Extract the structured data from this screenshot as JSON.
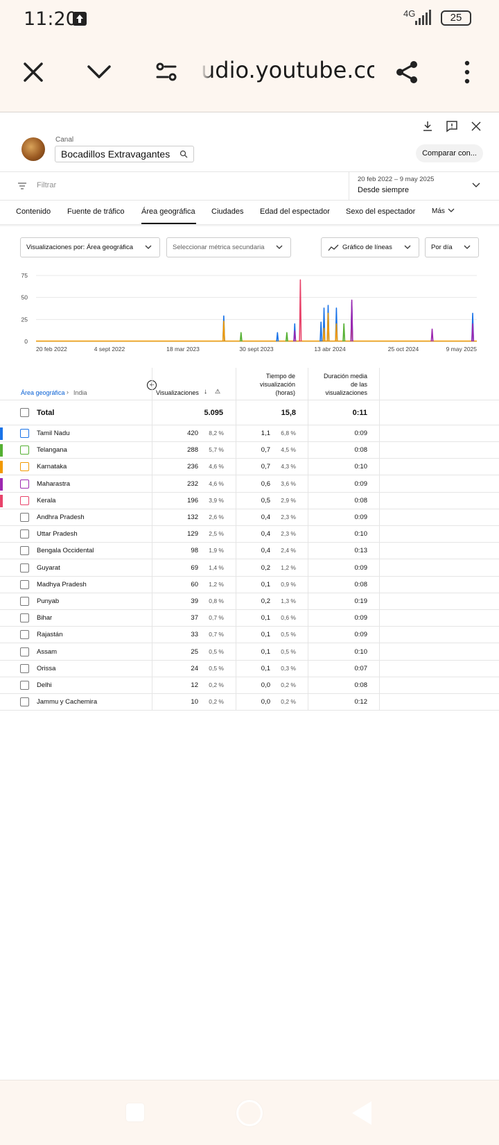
{
  "status_bar": {
    "time": "11:20",
    "network": "4G",
    "battery": "25"
  },
  "browser": {
    "url": "udio.youtube.com"
  },
  "header": {
    "channel_label": "Canal",
    "channel_name": "Bocadillos Extravagantes",
    "compare_label": "Comparar con..."
  },
  "filter": {
    "placeholder": "Filtrar"
  },
  "date": {
    "range": "20 feb 2022 – 9 may 2025",
    "label": "Desde siempre"
  },
  "tabs": [
    {
      "label": "Contenido"
    },
    {
      "label": "Fuente de tráfico"
    },
    {
      "label": "Área geográfica"
    },
    {
      "label": "Ciudades"
    },
    {
      "label": "Edad del espectador"
    },
    {
      "label": "Sexo del espectador"
    },
    {
      "label": "Más"
    }
  ],
  "controls": {
    "metric": "Visualizaciones por: Área geográfica",
    "secondary": "Seleccionar métrica secundaria",
    "chart_type": "Gráfico de líneas",
    "granularity": "Por día"
  },
  "chart_data": {
    "type": "line",
    "x_tick_labels": [
      "20 feb 2022",
      "4 sept 2022",
      "18 mar 2023",
      "30 sept 2023",
      "13 abr 2024",
      "25 oct 2024",
      "9 may 2025"
    ],
    "y_tick_labels": [
      "75",
      "50",
      "25",
      "0"
    ],
    "ylim": [
      0,
      75
    ],
    "grid": true,
    "series": [
      {
        "name": "Tamil Nadu",
        "color": "#1a73e8",
        "spikes": [
          [
            "2023-07-05",
            29
          ],
          [
            "2023-11-25",
            10
          ],
          [
            "2024-01-10",
            20
          ],
          [
            "2024-03-20",
            22
          ],
          [
            "2024-03-28",
            38
          ],
          [
            "2024-04-08",
            41
          ],
          [
            "2024-04-30",
            38
          ],
          [
            "2024-06-10",
            45
          ],
          [
            "2025-04-28",
            32
          ]
        ]
      },
      {
        "name": "Telangana",
        "color": "#55b033",
        "spikes": [
          [
            "2023-08-20",
            10
          ],
          [
            "2023-12-20",
            10
          ],
          [
            "2024-05-20",
            20
          ]
        ]
      },
      {
        "name": "Karnataka",
        "color": "#f29900",
        "spikes": [
          [
            "2023-07-05",
            23
          ],
          [
            "2024-03-28",
            15
          ],
          [
            "2024-04-08",
            32
          ],
          [
            "2024-04-30",
            20
          ],
          [
            "2024-06-10",
            30
          ]
        ]
      },
      {
        "name": "Maharastra",
        "color": "#9c27b0",
        "spikes": [
          [
            "2024-01-10",
            12
          ],
          [
            "2024-06-10",
            47
          ],
          [
            "2025-01-10",
            14
          ],
          [
            "2025-04-28",
            20
          ]
        ]
      },
      {
        "name": "Kerala",
        "color": "#e8436a",
        "spikes": [
          [
            "2024-01-25",
            70
          ]
        ]
      }
    ]
  },
  "table": {
    "breadcrumb_geo": "Área geográfica",
    "breadcrumb_country": "India",
    "col_views": "Visualizaciones",
    "col_time": "Tiempo de visualización (horas)",
    "col_duration": "Duración media de las visualizaciones",
    "total": {
      "label": "Total",
      "views": "5.095",
      "time": "15,8",
      "duration": "0:11"
    },
    "rows": [
      {
        "name": "Tamil Nadu",
        "views": "420",
        "views_pct": "8,2 %",
        "time": "1,1",
        "time_pct": "6,8 %",
        "duration": "0:09",
        "color": "#1a73e8"
      },
      {
        "name": "Telangana",
        "views": "288",
        "views_pct": "5,7 %",
        "time": "0,7",
        "time_pct": "4,5 %",
        "duration": "0:08",
        "color": "#55b033"
      },
      {
        "name": "Karnataka",
        "views": "236",
        "views_pct": "4,6 %",
        "time": "0,7",
        "time_pct": "4,3 %",
        "duration": "0:10",
        "color": "#f29900"
      },
      {
        "name": "Maharastra",
        "views": "232",
        "views_pct": "4,6 %",
        "time": "0,6",
        "time_pct": "3,6 %",
        "duration": "0:09",
        "color": "#9c27b0"
      },
      {
        "name": "Kerala",
        "views": "196",
        "views_pct": "3,9 %",
        "time": "0,5",
        "time_pct": "2,9 %",
        "duration": "0:08",
        "color": "#e8436a"
      },
      {
        "name": "Andhra Pradesh",
        "views": "132",
        "views_pct": "2,6 %",
        "time": "0,4",
        "time_pct": "2,3 %",
        "duration": "0:09",
        "color": ""
      },
      {
        "name": "Uttar Pradesh",
        "views": "129",
        "views_pct": "2,5 %",
        "time": "0,4",
        "time_pct": "2,3 %",
        "duration": "0:10",
        "color": ""
      },
      {
        "name": "Bengala Occidental",
        "views": "98",
        "views_pct": "1,9 %",
        "time": "0,4",
        "time_pct": "2,4 %",
        "duration": "0:13",
        "color": ""
      },
      {
        "name": "Guyarat",
        "views": "69",
        "views_pct": "1,4 %",
        "time": "0,2",
        "time_pct": "1,2 %",
        "duration": "0:09",
        "color": ""
      },
      {
        "name": "Madhya Pradesh",
        "views": "60",
        "views_pct": "1,2 %",
        "time": "0,1",
        "time_pct": "0,9 %",
        "duration": "0:08",
        "color": ""
      },
      {
        "name": "Punyab",
        "views": "39",
        "views_pct": "0,8 %",
        "time": "0,2",
        "time_pct": "1,3 %",
        "duration": "0:19",
        "color": ""
      },
      {
        "name": "Bihar",
        "views": "37",
        "views_pct": "0,7 %",
        "time": "0,1",
        "time_pct": "0,6 %",
        "duration": "0:09",
        "color": ""
      },
      {
        "name": "Rajastán",
        "views": "33",
        "views_pct": "0,7 %",
        "time": "0,1",
        "time_pct": "0,5 %",
        "duration": "0:09",
        "color": ""
      },
      {
        "name": "Assam",
        "views": "25",
        "views_pct": "0,5 %",
        "time": "0,1",
        "time_pct": "0,5 %",
        "duration": "0:10",
        "color": ""
      },
      {
        "name": "Orissa",
        "views": "24",
        "views_pct": "0,5 %",
        "time": "0,1",
        "time_pct": "0,3 %",
        "duration": "0:07",
        "color": ""
      },
      {
        "name": "Delhi",
        "views": "12",
        "views_pct": "0,2 %",
        "time": "0,0",
        "time_pct": "0,2 %",
        "duration": "0:08",
        "color": ""
      },
      {
        "name": "Jammu y Cachemira",
        "views": "10",
        "views_pct": "0,2 %",
        "time": "0,0",
        "time_pct": "0,2 %",
        "duration": "0:12",
        "color": ""
      }
    ]
  },
  "icons": {
    "close": "close-icon",
    "collapse": "chevron-down-icon",
    "page_settings": "tune-icon",
    "share": "share-icon",
    "menu": "more-vert-icon",
    "download": "download-icon",
    "feedback": "feedback-icon",
    "dismiss": "close-icon",
    "search": "search-icon",
    "filter": "filter-icon"
  }
}
